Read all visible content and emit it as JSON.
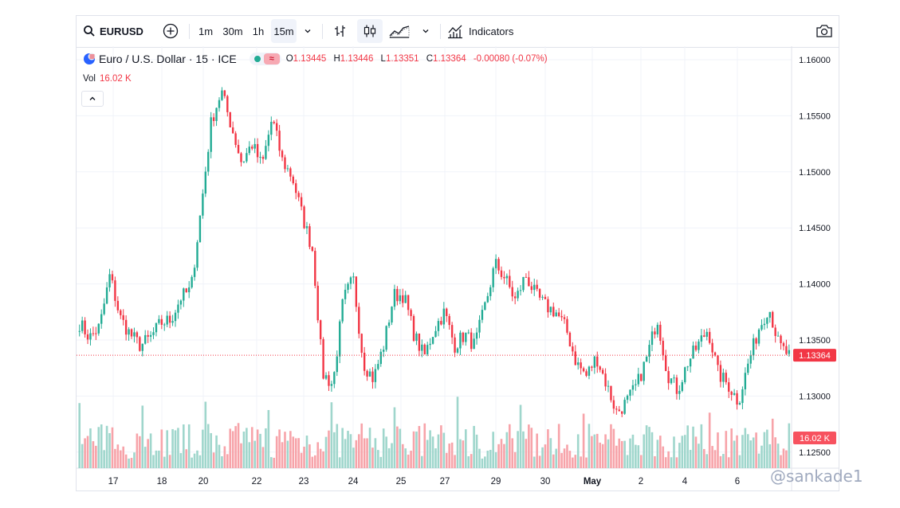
{
  "toolbar": {
    "symbol": "EURUSD",
    "intervals": [
      "1m",
      "30m",
      "1h",
      "15m"
    ],
    "active_interval": "15m",
    "indicators_label": "Indicators",
    "icons": [
      "search-icon",
      "plus-circle-icon",
      "chevron-down-icon",
      "bar-chart-icon",
      "candles-icon",
      "area-chart-icon",
      "chevron-down-icon",
      "indicators-icon",
      "camera-icon"
    ]
  },
  "legend": {
    "title": "Euro / U.S. Dollar · 15 · ICE",
    "o_label": "O",
    "o": "1.13445",
    "h_label": "H",
    "h": "1.13446",
    "l_label": "L",
    "l": "1.13351",
    "c_label": "C",
    "c": "1.13364",
    "change": "-0.00080 (-0.07%)",
    "market_status_color": "#22ab94"
  },
  "volume": {
    "label": "Vol",
    "value": "16.02 K"
  },
  "colors": {
    "up": "#22ab94",
    "down": "#f23645",
    "up_vol": "#9fd6cc",
    "down_vol": "#f7a3a9",
    "price_line": "#f23645"
  },
  "watermark": "@sankade1",
  "chart_data": {
    "type": "candlestick",
    "symbol": "EURUSD",
    "interval": "15m",
    "price_axis": {
      "ticks": [
        "1.16000",
        "1.15500",
        "1.15000",
        "1.14500",
        "1.14000",
        "1.13500",
        "1.13000",
        "1.12500"
      ],
      "range": [
        1.1205,
        1.1625
      ]
    },
    "time_axis": {
      "ticks": [
        "17",
        "18",
        "20",
        "22",
        "23",
        "24",
        "25",
        "27",
        "29",
        "30",
        "May",
        "2",
        "4",
        "6"
      ]
    },
    "last_price": "1.13364",
    "last_price_value": 1.13364,
    "volume_label": "16.02 K",
    "series": [
      {
        "x": "16",
        "y": 1.1365
      },
      {
        "x": "16",
        "y": 1.1352
      },
      {
        "x": "17",
        "y": 1.1362
      },
      {
        "x": "17",
        "y": 1.1408
      },
      {
        "x": "17",
        "y": 1.137
      },
      {
        "x": "17",
        "y": 1.1355
      },
      {
        "x": "18",
        "y": 1.1345
      },
      {
        "x": "18",
        "y": 1.1352
      },
      {
        "x": "18",
        "y": 1.1365
      },
      {
        "x": "18",
        "y": 1.1368
      },
      {
        "x": "20",
        "y": 1.1388
      },
      {
        "x": "20",
        "y": 1.1395
      },
      {
        "x": "20",
        "y": 1.1468
      },
      {
        "x": "20",
        "y": 1.1545
      },
      {
        "x": "21",
        "y": 1.1572
      },
      {
        "x": "21",
        "y": 1.154
      },
      {
        "x": "21",
        "y": 1.1508
      },
      {
        "x": "22",
        "y": 1.1525
      },
      {
        "x": "22",
        "y": 1.1505
      },
      {
        "x": "22",
        "y": 1.1548
      },
      {
        "x": "22",
        "y": 1.151
      },
      {
        "x": "23",
        "y": 1.1495
      },
      {
        "x": "23",
        "y": 1.146
      },
      {
        "x": "23",
        "y": 1.143
      },
      {
        "x": "23",
        "y": 1.132
      },
      {
        "x": "23",
        "y": 1.131
      },
      {
        "x": "23",
        "y": 1.1385
      },
      {
        "x": "24",
        "y": 1.1405
      },
      {
        "x": "24",
        "y": 1.133
      },
      {
        "x": "24",
        "y": 1.1315
      },
      {
        "x": "24",
        "y": 1.1345
      },
      {
        "x": "24",
        "y": 1.139
      },
      {
        "x": "25",
        "y": 1.139
      },
      {
        "x": "25",
        "y": 1.1355
      },
      {
        "x": "25",
        "y": 1.1335
      },
      {
        "x": "25",
        "y": 1.136
      },
      {
        "x": "27",
        "y": 1.1375
      },
      {
        "x": "27",
        "y": 1.1345
      },
      {
        "x": "27",
        "y": 1.1355
      },
      {
        "x": "27",
        "y": 1.1345
      },
      {
        "x": "28",
        "y": 1.138
      },
      {
        "x": "28",
        "y": 1.1418
      },
      {
        "x": "29",
        "y": 1.1405
      },
      {
        "x": "29",
        "y": 1.1385
      },
      {
        "x": "29",
        "y": 1.1408
      },
      {
        "x": "30",
        "y": 1.139
      },
      {
        "x": "30",
        "y": 1.138
      },
      {
        "x": "30",
        "y": 1.1375
      },
      {
        "x": "30",
        "y": 1.136
      },
      {
        "x": "May",
        "y": 1.133
      },
      {
        "x": "May",
        "y": 1.1318
      },
      {
        "x": "May",
        "y": 1.1335
      },
      {
        "x": "May",
        "y": 1.131
      },
      {
        "x": "2",
        "y": 1.1285
      },
      {
        "x": "2",
        "y": 1.1295
      },
      {
        "x": "2",
        "y": 1.131
      },
      {
        "x": "3",
        "y": 1.1335
      },
      {
        "x": "3",
        "y": 1.137
      },
      {
        "x": "3",
        "y": 1.132
      },
      {
        "x": "4",
        "y": 1.1305
      },
      {
        "x": "4",
        "y": 1.133
      },
      {
        "x": "4",
        "y": 1.1345
      },
      {
        "x": "5",
        "y": 1.136
      },
      {
        "x": "5",
        "y": 1.132
      },
      {
        "x": "5",
        "y": 1.131
      },
      {
        "x": "6",
        "y": 1.1295
      },
      {
        "x": "6",
        "y": 1.133
      },
      {
        "x": "6",
        "y": 1.136
      },
      {
        "x": "7",
        "y": 1.138
      },
      {
        "x": "7",
        "y": 1.1345
      },
      {
        "x": "7",
        "y": 1.1336
      }
    ]
  }
}
